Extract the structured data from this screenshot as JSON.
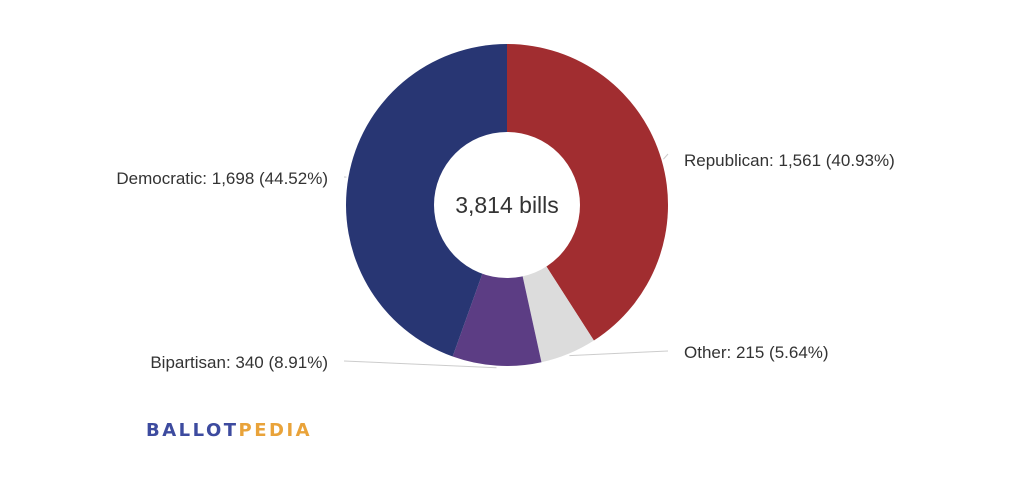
{
  "chart_data": {
    "type": "pie",
    "style": "donut",
    "center_label": "3,814 bills",
    "total": 3814,
    "slices": [
      {
        "name": "Republican",
        "value": 1561,
        "percent": 40.93,
        "label": "Republican: 1,561 (40.93%)",
        "color": "#a12d30"
      },
      {
        "name": "Other",
        "value": 215,
        "percent": 5.64,
        "label": "Other: 215 (5.64%)",
        "color": "#dcdcdc"
      },
      {
        "name": "Bipartisan",
        "value": 340,
        "percent": 8.91,
        "label": "Bipartisan: 340 (8.91%)",
        "color": "#5c3d84"
      },
      {
        "name": "Democratic",
        "value": 1698,
        "percent": 44.52,
        "label": "Democratic: 1,698 (44.52%)",
        "color": "#283673"
      }
    ]
  },
  "logo": {
    "part1": "BALLOT",
    "part2": "PEDIA",
    "color1": "#3d4b9f",
    "color2": "#e9a33a"
  }
}
